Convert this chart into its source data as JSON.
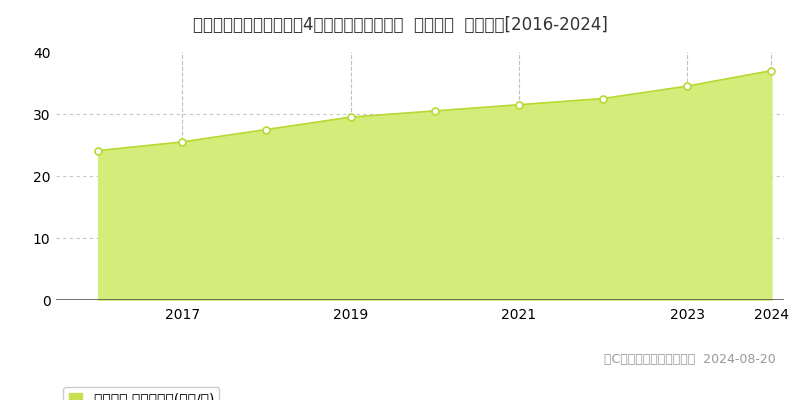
{
  "title": "宮城県仙台市泉区南光台4丁目８６番２５５外  地価公示  地価推移[2016-2024]",
  "years": [
    2016,
    2017,
    2018,
    2019,
    2020,
    2021,
    2022,
    2023,
    2024
  ],
  "values": [
    24.1,
    25.5,
    27.5,
    29.5,
    30.5,
    31.5,
    32.5,
    34.5,
    37.0
  ],
  "ylim": [
    0,
    40
  ],
  "yticks": [
    0,
    10,
    20,
    30,
    40
  ],
  "fill_color": "#d4ed7a",
  "line_color": "#b8d832",
  "marker_color": "#ffffff",
  "marker_edge_color": "#b8d832",
  "grid_color_h": "#c8c8c8",
  "grid_color_v": "#c0c0c0",
  "bg_color": "#ffffff",
  "legend_label": "地価公示 平均坪単価(万円/坪)",
  "legend_color": "#c8e050",
  "copyright_text": "（C）土地価格ドットコム  2024-08-20",
  "title_fontsize": 12,
  "tick_fontsize": 10,
  "legend_fontsize": 10,
  "copyright_fontsize": 9
}
